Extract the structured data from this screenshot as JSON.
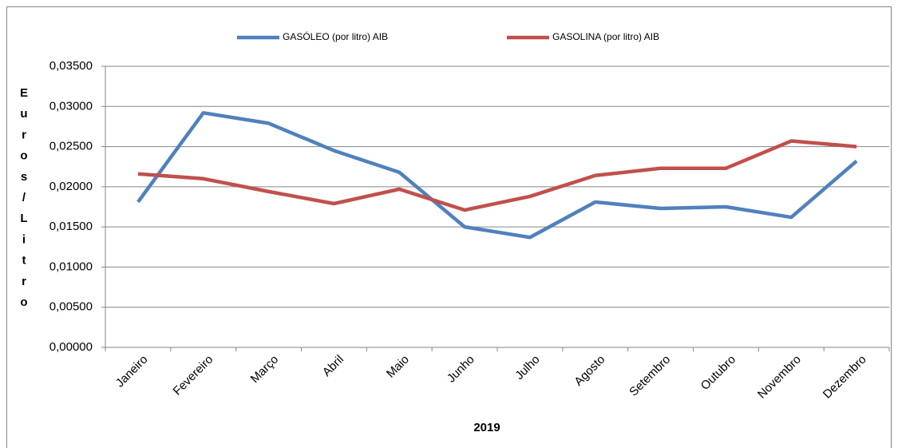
{
  "chart_data": {
    "type": "line",
    "xlabel": "2019",
    "ylabel": "Euros/Litro",
    "categories": [
      "Janeiro",
      "Fevereiro",
      "Março",
      "Abril",
      "Maio",
      "Junho",
      "Julho",
      "Agosto",
      "Setembro",
      "Outubro",
      "Novembro",
      "Dezembro"
    ],
    "series": [
      {
        "name": "GASÓLEO (por litro) AIB",
        "color": "#4f81bd",
        "values": [
          0.0181,
          0.0292,
          0.0279,
          0.0245,
          0.0218,
          0.015,
          0.0137,
          0.0181,
          0.0173,
          0.0175,
          0.0162,
          0.0232
        ]
      },
      {
        "name": "GASOLINA  (por litro) AIB",
        "color": "#c0504d",
        "values": [
          0.0216,
          0.021,
          0.0194,
          0.0179,
          0.0197,
          0.0171,
          0.0188,
          0.0214,
          0.0223,
          0.0223,
          0.0257,
          0.025
        ]
      }
    ],
    "ylim": [
      0,
      0.035
    ],
    "yticks": [
      {
        "value": 0,
        "label": "0,00000"
      },
      {
        "value": 0.005,
        "label": "0,00500"
      },
      {
        "value": 0.01,
        "label": "0,01000"
      },
      {
        "value": 0.015,
        "label": "0,01500"
      },
      {
        "value": 0.02,
        "label": "0,02000"
      },
      {
        "value": 0.025,
        "label": "0,02500"
      },
      {
        "value": 0.03,
        "label": "0,03000"
      },
      {
        "value": 0.035,
        "label": "0,03500"
      }
    ],
    "grid": true,
    "legend": "top"
  }
}
